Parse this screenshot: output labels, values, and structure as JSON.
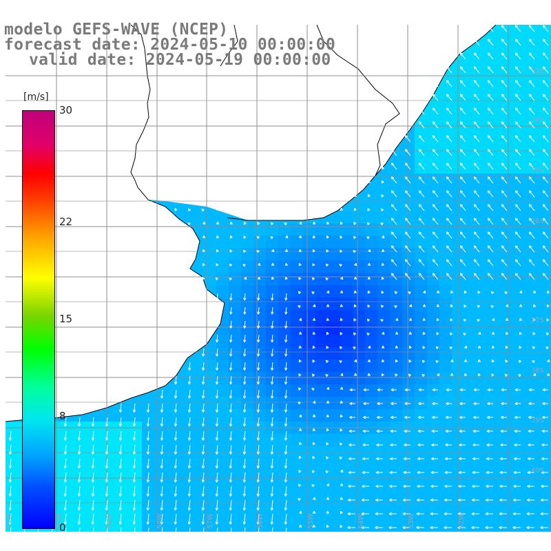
{
  "title": {
    "line1": "modelo GEFS-WAVE (NCEP)",
    "line2": "forecast date: 2024-05-10 00:00:00",
    "line3": "valid date: 2024-05-19 00:00:00"
  },
  "colorbar": {
    "unit": "[m/s]",
    "ticks": [
      {
        "label": "30",
        "value": 30
      },
      {
        "label": "22",
        "value": 22
      },
      {
        "label": "15",
        "value": 15
      },
      {
        "label": "8",
        "value": 8
      },
      {
        "label": "0",
        "value": 0
      }
    ],
    "min": 0,
    "max": 30
  },
  "map": {
    "lat_labels": [
      "33S",
      "34S",
      "35S",
      "36S",
      "37S",
      "38S",
      "39S",
      "40S"
    ],
    "lon_labels": [
      "61W",
      "60W",
      "59W",
      "58W",
      "57W",
      "56W",
      "55W",
      "54W",
      "53W",
      "52W"
    ],
    "land_color": "#ffffff",
    "arrow_color": "#ffffff",
    "grid_color": "#8c8c8c"
  }
}
